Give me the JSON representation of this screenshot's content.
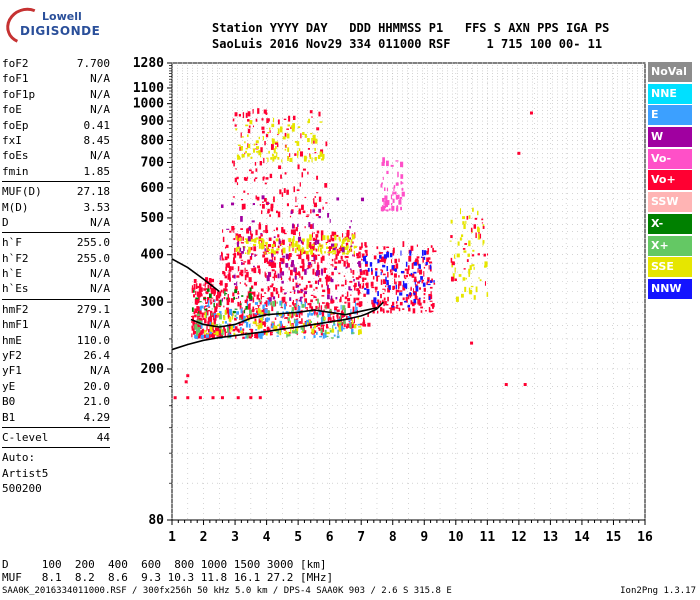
{
  "logo": {
    "top": "Lowell",
    "bottom": "DIGISONDE"
  },
  "header": {
    "line1": "Station YYYY DAY   DDD HHMMSS P1   FFS S AXN PPS IGA PS",
    "line2": "SaoLuis 2016 Nov29 334 011000 RSF     1 715 100 00- 11"
  },
  "params_groups": [
    [
      {
        "label": "foF2",
        "value": "7.700"
      },
      {
        "label": "foF1",
        "value": "N/A"
      },
      {
        "label": "foF1p",
        "value": "N/A"
      },
      {
        "label": "foE",
        "value": "N/A"
      },
      {
        "label": "foEp",
        "value": "0.41"
      },
      {
        "label": "fxI",
        "value": "8.45"
      },
      {
        "label": "foEs",
        "value": "N/A"
      },
      {
        "label": "fmin",
        "value": "1.85"
      }
    ],
    [
      {
        "label": "MUF(D)",
        "value": "27.18"
      },
      {
        "label": "M(D)",
        "value": "3.53"
      },
      {
        "label": "D",
        "value": "N/A"
      }
    ],
    [
      {
        "label": "h`F",
        "value": "255.0"
      },
      {
        "label": "h`F2",
        "value": "255.0"
      },
      {
        "label": "h`E",
        "value": "N/A"
      },
      {
        "label": "h`Es",
        "value": "N/A"
      }
    ],
    [
      {
        "label": "hmF2",
        "value": "279.1"
      },
      {
        "label": "hmF1",
        "value": "N/A"
      },
      {
        "label": "hmE",
        "value": "110.0"
      },
      {
        "label": "yF2",
        "value": "26.4"
      },
      {
        "label": "yF1",
        "value": "N/A"
      },
      {
        "label": "yE",
        "value": "20.0"
      },
      {
        "label": "B0",
        "value": "21.0"
      },
      {
        "label": "B1",
        "value": "4.29"
      }
    ],
    [
      {
        "label": "C-level",
        "value": "44"
      }
    ]
  ],
  "autoscaling": {
    "line1": "Auto:",
    "line2": "Artist5",
    "line3": "500200"
  },
  "legend": [
    {
      "label": "NoVal",
      "color": "#8c8c8c"
    },
    {
      "label": "NNE",
      "color": "#00e0ff"
    },
    {
      "label": "E",
      "color": "#3ca0ff"
    },
    {
      "label": "W",
      "color": "#a000a0"
    },
    {
      "label": "Vo-",
      "color": "#ff50c8"
    },
    {
      "label": "Vo+",
      "color": "#ff0032"
    },
    {
      "label": "SSW",
      "color": "#ffb4b4"
    },
    {
      "label": "X-",
      "color": "#008000"
    },
    {
      "label": "X+",
      "color": "#64c864"
    },
    {
      "label": "SSE",
      "color": "#e6e600"
    },
    {
      "label": "NNW",
      "color": "#1414ff"
    }
  ],
  "chart_data": {
    "type": "scatter",
    "title": "",
    "xlabel": "",
    "ylabel": "",
    "xlim": [
      1,
      16
    ],
    "ylim": [
      80,
      1280
    ],
    "y_scale": "log",
    "grid": "dotted",
    "x_ticks": [
      1,
      2,
      3,
      4,
      5,
      6,
      7,
      8,
      9,
      10,
      11,
      12,
      13,
      14,
      15,
      16
    ],
    "y_ticks": [
      80,
      200,
      300,
      400,
      500,
      600,
      700,
      800,
      900,
      1000,
      1100,
      1280
    ],
    "series": [
      {
        "type": "line",
        "x": [
          1.0,
          1.5,
          2.0,
          2.5,
          3.0,
          3.5,
          4.0,
          4.5,
          5.0,
          5.5,
          6.0,
          6.5,
          7.0,
          7.2,
          7.5,
          7.7
        ],
        "y": [
          225,
          232,
          238,
          242,
          245,
          248,
          251,
          255,
          258,
          262,
          266,
          270,
          276,
          280,
          288,
          300
        ]
      },
      {
        "type": "line",
        "x": [
          1.6,
          2.0,
          2.5,
          3.0,
          3.5,
          4.0,
          4.5,
          5.0,
          5.5,
          6.0,
          6.5,
          7.0,
          7.5
        ],
        "y": [
          270,
          262,
          258,
          262,
          272,
          278,
          280,
          282,
          286,
          282,
          278,
          284,
          290
        ]
      },
      {
        "type": "line",
        "x": [
          1.0,
          1.5,
          2.0,
          2.5
        ],
        "y": [
          390,
          370,
          345,
          320
        ]
      },
      {
        "type": "points",
        "x": [
          1.1,
          1.5,
          1.9,
          2.3,
          2.6,
          3.1,
          3.5,
          3.8
        ],
        "y": [
          168,
          168,
          168,
          168,
          168,
          168,
          168,
          168
        ]
      },
      {
        "type": "points",
        "x": [
          1.45,
          1.5
        ],
        "y": [
          185,
          192
        ]
      },
      {
        "type": "points",
        "x": [
          12.4,
          12.0,
          12.2,
          10.5,
          11.6
        ],
        "y": [
          945,
          740,
          182,
          234,
          182
        ]
      }
    ],
    "clusters": [
      {
        "x": [
          1.6,
          2.5
        ],
        "y": [
          240,
          340
        ],
        "color": "#ff0032",
        "n": 200
      },
      {
        "x": [
          2.5,
          4.0
        ],
        "y": [
          240,
          480
        ],
        "color": "#ff0032",
        "n": 260
      },
      {
        "x": [
          4.0,
          5.8
        ],
        "y": [
          245,
          470
        ],
        "color": "#ff0032",
        "n": 260
      },
      {
        "x": [
          5.8,
          7.2
        ],
        "y": [
          255,
          450
        ],
        "color": "#ff0032",
        "n": 200
      },
      {
        "x": [
          7.3,
          9.3
        ],
        "y": [
          280,
          420
        ],
        "color": "#ff0032",
        "n": 200
      },
      {
        "x": [
          1.6,
          7.0
        ],
        "y": [
          240,
          300
        ],
        "color": "#3ca0ff",
        "n": 120
      },
      {
        "x": [
          1.6,
          7.0
        ],
        "y": [
          240,
          300
        ],
        "color": "#64c864",
        "n": 80
      },
      {
        "x": [
          2.0,
          7.0
        ],
        "y": [
          245,
          280
        ],
        "color": "#e6e600",
        "n": 80
      },
      {
        "x": [
          3.0,
          6.8
        ],
        "y": [
          400,
          440
        ],
        "color": "#e6e600",
        "n": 120
      },
      {
        "x": [
          2.9,
          5.9
        ],
        "y": [
          500,
          950
        ],
        "color": "#ff0032",
        "n": 140
      },
      {
        "x": [
          3.0,
          5.8
        ],
        "y": [
          700,
          900
        ],
        "color": "#e6e600",
        "n": 90
      },
      {
        "x": [
          2.5,
          7.0
        ],
        "y": [
          300,
          560
        ],
        "color": "#a000a0",
        "n": 110
      },
      {
        "x": [
          7.0,
          9.3
        ],
        "y": [
          290,
          400
        ],
        "color": "#1414ff",
        "n": 70
      },
      {
        "x": [
          7.6,
          8.3
        ],
        "y": [
          520,
          720
        ],
        "color": "#ff50c8",
        "n": 50
      },
      {
        "x": [
          9.8,
          11.0
        ],
        "y": [
          300,
          520
        ],
        "color": "#e6e600",
        "n": 50
      },
      {
        "x": [
          9.8,
          11.0
        ],
        "y": [
          330,
          500
        ],
        "color": "#ff0032",
        "n": 25
      },
      {
        "x": [
          1.6,
          3.5
        ],
        "y": [
          280,
          320
        ],
        "color": "#008000",
        "n": 25
      }
    ]
  },
  "footer": {
    "row1_label": "D",
    "row1_values": "100  200  400  600  800 1000 1500 3000 [km]",
    "row2_label": "MUF",
    "row2_values": "8.1  8.2  8.6  9.3 10.3 11.8 16.1 27.2 [MHz]",
    "filename_line": "SAA0K_2016334011000.RSF / 300fx256h 50 kHz 5.0 km / DPS-4 SAA0K 903 / 2.6 S 315.8 E",
    "version": "Ion2Png 1.3.17"
  }
}
